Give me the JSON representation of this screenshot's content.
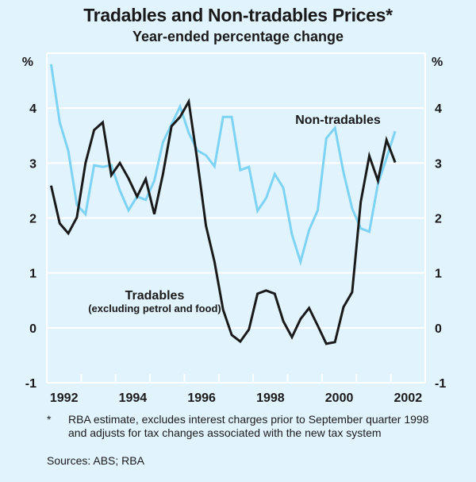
{
  "chart_data": {
    "type": "line",
    "title": "Tradables and Non-tradables Prices*",
    "subtitle": "Year-ended percentage change",
    "xlabel": "",
    "ylabel": "%",
    "ylabel_right": "%",
    "ylim": [
      -1,
      5
    ],
    "yticks": [
      4,
      3,
      2,
      1,
      0,
      -1
    ],
    "ytick_labels": [
      "4",
      "3",
      "2",
      "1",
      "0",
      "-1"
    ],
    "xlim": [
      1992,
      2003
    ],
    "xtick_labels": [
      "1992",
      "1994",
      "1996",
      "1998",
      "2000",
      "2002"
    ],
    "grid": true,
    "frequency": "quarterly",
    "x_start": 1992.125,
    "series": [
      {
        "name": "Tradables",
        "label_line2": "(excluding petrol and food)",
        "color": "#1a1a1a",
        "values": [
          2.59,
          1.9,
          1.72,
          2.01,
          3.0,
          3.6,
          3.74,
          2.78,
          3.0,
          2.72,
          2.39,
          2.71,
          2.07,
          2.8,
          3.67,
          3.84,
          4.12,
          3.05,
          1.86,
          1.2,
          0.33,
          -0.13,
          -0.25,
          -0.03,
          0.62,
          0.68,
          0.62,
          0.12,
          -0.17,
          0.16,
          0.36,
          0.04,
          -0.29,
          -0.26,
          0.38,
          0.65,
          2.29,
          3.13,
          2.68,
          3.42,
          3.01
        ]
      },
      {
        "name": "Non-tradables",
        "color": "#7dd3f4",
        "values": [
          4.8,
          3.74,
          3.22,
          2.24,
          2.07,
          2.96,
          2.93,
          2.96,
          2.5,
          2.14,
          2.39,
          2.33,
          2.68,
          3.38,
          3.7,
          4.03,
          3.55,
          3.23,
          3.14,
          2.94,
          3.84,
          3.84,
          2.87,
          2.93,
          2.13,
          2.36,
          2.8,
          2.55,
          1.7,
          1.2,
          1.78,
          2.14,
          3.45,
          3.64,
          2.83,
          2.17,
          1.81,
          1.75,
          2.62,
          3.09,
          3.58
        ]
      }
    ]
  },
  "footnote": {
    "marker": "*",
    "text": "RBA estimate, excludes interest charges prior to September quarter 1998 and adjusts for tax changes associated with the new tax system"
  },
  "sources": "Sources: ABS; RBA"
}
